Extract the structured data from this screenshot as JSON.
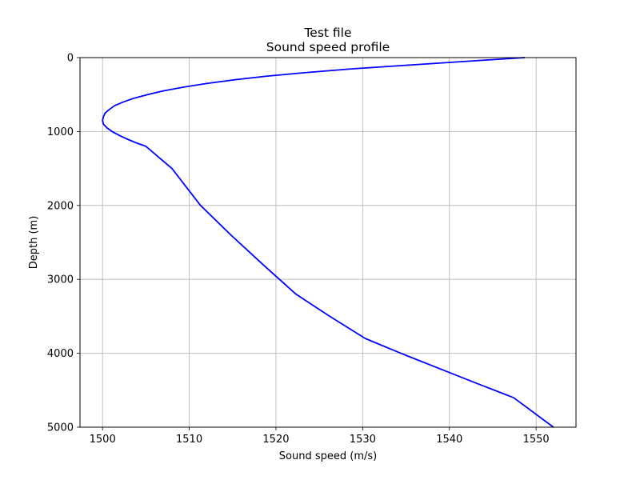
{
  "chart_data": {
    "type": "line",
    "title": "Test file",
    "subtitle": "Sound speed profile",
    "xlabel": "Sound speed (m/s)",
    "ylabel": "Depth (m)",
    "xlim": [
      1497.4,
      1554.6
    ],
    "ylim": [
      0,
      5000
    ],
    "y_inverted": true,
    "grid": true,
    "xticks": [
      "1500",
      "1510",
      "1520",
      "1530",
      "1540",
      "1550"
    ],
    "xtick_values": [
      1500,
      1510,
      1520,
      1530,
      1540,
      1550
    ],
    "yticks": [
      "0",
      "1000",
      "2000",
      "3000",
      "4000",
      "5000"
    ],
    "ytick_values": [
      0,
      1000,
      2000,
      3000,
      4000,
      5000
    ],
    "series": [
      {
        "color": "#0000ff",
        "x": [
          1548.7,
          1542.0,
          1535.5,
          1529.0,
          1523.7,
          1519.0,
          1515.2,
          1512.0,
          1509.3,
          1507.0,
          1505.2,
          1503.6,
          1502.4,
          1501.4,
          1500.8,
          1500.3,
          1500.1,
          1500.0,
          1500.1,
          1500.5,
          1501.1,
          1501.9,
          1502.8,
          1503.8,
          1505.0,
          1508.0,
          1511.3,
          1514.8,
          1518.5,
          1522.3,
          1526.2,
          1530.3,
          1534.4,
          1538.7,
          1543.0,
          1547.4,
          1552.0
        ],
        "y": [
          0,
          50,
          100,
          150,
          200,
          250,
          300,
          350,
          400,
          450,
          500,
          550,
          600,
          650,
          700,
          750,
          800,
          850,
          900,
          950,
          1000,
          1050,
          1100,
          1150,
          1200,
          1500,
          2000,
          2400,
          2800,
          3200,
          3500,
          3800,
          4000,
          4200,
          4400,
          4600,
          5000
        ]
      }
    ]
  }
}
